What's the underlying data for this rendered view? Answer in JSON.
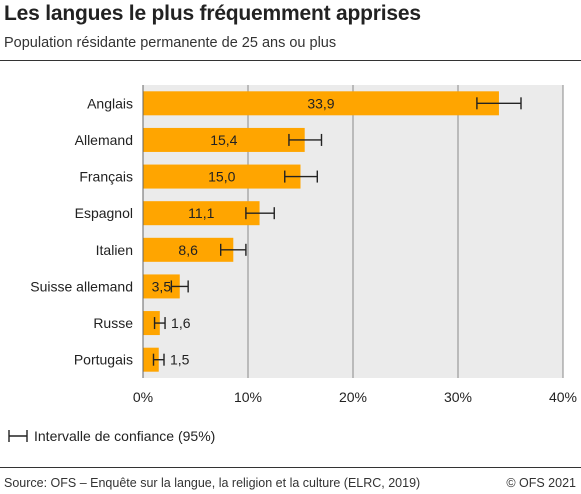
{
  "header": {
    "title": "Les langues le plus fréquemment apprises",
    "subtitle": "Population résidante permanente de 25 ans ou plus"
  },
  "legend": {
    "label": "Intervalle de confiance (95%)",
    "icon": "error-bar-icon"
  },
  "footer": {
    "source": "Source: OFS – Enquête sur la langue, la religion et la culture (ELRC, 2019)",
    "credit": "© OFS 2021"
  },
  "colors": {
    "bar": "#FFA500",
    "plot_bg": "#EBEBEB",
    "grid": "#888888",
    "text": "#222222"
  },
  "chart_data": {
    "type": "bar",
    "orientation": "horizontal",
    "categories": [
      "Anglais",
      "Allemand",
      "Français",
      "Espagnol",
      "Italien",
      "Suisse allemand",
      "Russe",
      "Portugais"
    ],
    "values": [
      33.9,
      15.4,
      15.0,
      11.1,
      8.6,
      3.5,
      1.6,
      1.5
    ],
    "value_labels": [
      "33,9",
      "15,4",
      "15,0",
      "11,1",
      "8,6",
      "3,5",
      "1,6",
      "1,5"
    ],
    "ci_low": [
      31.8,
      13.9,
      13.5,
      9.8,
      7.4,
      2.7,
      1.1,
      1.0
    ],
    "ci_high": [
      36.0,
      17.0,
      16.6,
      12.5,
      9.8,
      4.3,
      2.1,
      2.0
    ],
    "xlim": [
      0,
      40
    ],
    "xticks": [
      0,
      10,
      20,
      30,
      40
    ],
    "xtick_labels": [
      "0%",
      "10%",
      "20%",
      "30%",
      "40%"
    ],
    "grid": true,
    "legend_position": "bottom-left"
  }
}
